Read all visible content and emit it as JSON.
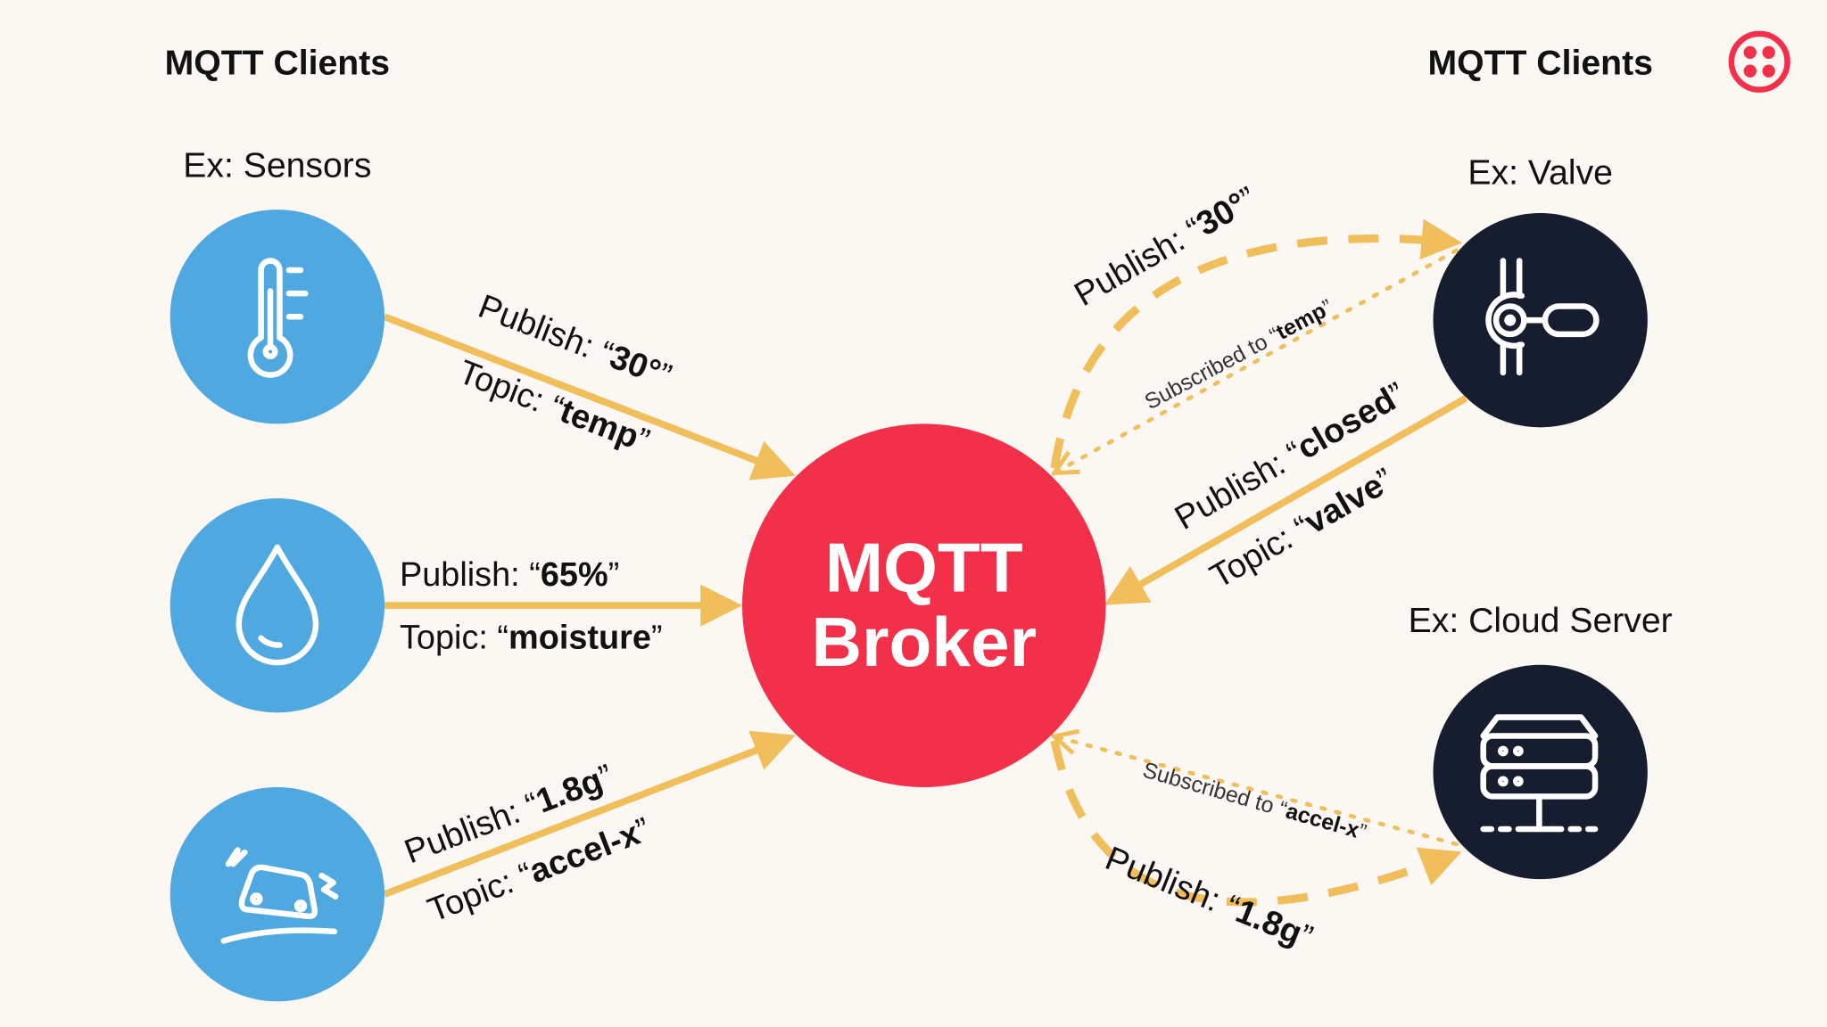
{
  "colors": {
    "background": "#fbf7f3",
    "sensor_node": "#4fa8e0",
    "subscriber_node": "#161d2e",
    "broker": "#f2304a",
    "arrow": "#f0be5a",
    "logo": "#f2304a"
  },
  "headers": {
    "left": "MQTT Clients",
    "right": "MQTT Clients"
  },
  "examples": {
    "sensors": "Ex: Sensors",
    "valve": "Ex: Valve",
    "cloud": "Ex: Cloud Server"
  },
  "broker": {
    "line1": "MQTT",
    "line2": "Broker"
  },
  "icons": {
    "logo": "twilio-logo-icon",
    "temp": "thermometer-icon",
    "moisture": "water-drop-icon",
    "accel": "car-skid-icon",
    "valve": "valve-icon",
    "server": "server-icon"
  },
  "labels": {
    "temp_publish": {
      "prefix": "Publish: “",
      "value": "30°",
      "suffix": "”"
    },
    "temp_topic": {
      "prefix": "Topic: “",
      "value": "temp",
      "suffix": "”"
    },
    "moisture_publish": {
      "prefix": "Publish: “",
      "value": "65%",
      "suffix": "”"
    },
    "moisture_topic": {
      "prefix": "Topic: “",
      "value": "moisture",
      "suffix": "”"
    },
    "accel_publish": {
      "prefix": "Publish: “",
      "value": "1.8g",
      "suffix": "”"
    },
    "accel_topic": {
      "prefix": "Topic: “",
      "value": "accel-x",
      "suffix": "”"
    },
    "valve_publish": {
      "prefix": "Publish: “",
      "value": "closed",
      "suffix": "”"
    },
    "valve_topic": {
      "prefix": "Topic: “",
      "value": "valve",
      "suffix": "”"
    },
    "valve_receive": {
      "prefix": "Publish: “",
      "value": "30°",
      "suffix": "”"
    },
    "valve_sub": {
      "prefix": "Subscribed to “",
      "value": "temp",
      "suffix": "”"
    },
    "cloud_sub": {
      "prefix": "Subscribed to “",
      "value": "accel-x",
      "suffix": "”"
    },
    "cloud_receive": {
      "prefix": "Publish: “",
      "value": "1.8g",
      "suffix": "”"
    }
  }
}
